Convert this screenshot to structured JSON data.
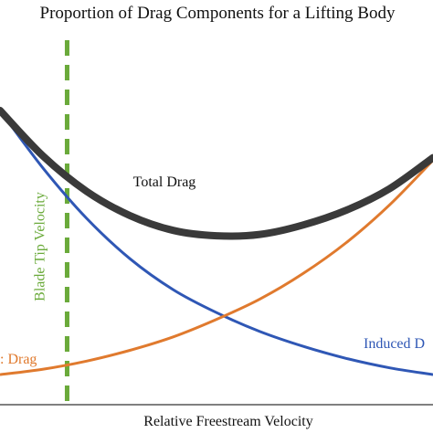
{
  "chart_data": {
    "type": "line",
    "title": "Proportion of Drag Components for a Lifting Body",
    "xlabel": "Relative Freestream Velocity",
    "ylabel": "",
    "xlim": [
      0,
      1
    ],
    "ylim": [
      0,
      1
    ],
    "grid": false,
    "x": [
      0,
      0.1,
      0.2,
      0.3,
      0.4,
      0.5,
      0.6,
      0.7,
      0.8,
      0.9,
      1.0
    ],
    "series": [
      {
        "name": "Total Drag",
        "color": "#3a3a3a",
        "values": [
          0.99,
          0.82,
          0.69,
          0.6,
          0.545,
          0.525,
          0.53,
          0.565,
          0.62,
          0.7,
          0.815
        ]
      },
      {
        "name": "Induced Drag",
        "color": "#2f57b5",
        "values": [
          0.99,
          0.775,
          0.59,
          0.44,
          0.325,
          0.24,
          0.17,
          0.115,
          0.07,
          0.035,
          0.01
        ]
      },
      {
        "name": "Drag",
        "color": "#e07a2e",
        "values": [
          0.01,
          0.03,
          0.06,
          0.1,
          0.15,
          0.215,
          0.29,
          0.385,
          0.5,
          0.64,
          0.805
        ]
      }
    ],
    "annotations": [
      {
        "label": "Blade Tip Velocity",
        "x": 0.155,
        "color": "#6aaa3a",
        "style": "dashed-vertical"
      }
    ],
    "series_labels": {
      "total": "Total Drag",
      "induced": "Induced D",
      "parasite": ": Drag"
    }
  }
}
